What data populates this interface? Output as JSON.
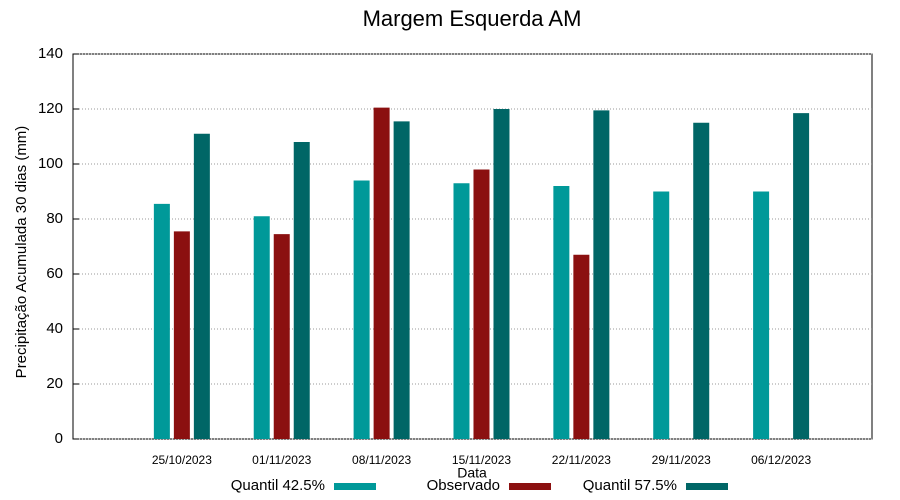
{
  "chart_data": {
    "type": "bar",
    "title": "Margem Esquerda AM",
    "x_label": "Data",
    "y_label": "Precipitação Acumulada 30 dias (mm)",
    "categories": [
      "25/10/2023",
      "01/11/2023",
      "08/11/2023",
      "15/11/2023",
      "22/11/2023",
      "29/11/2023",
      "06/12/2023"
    ],
    "series": [
      {
        "name": "Quantil 42.5%",
        "color": "#009999",
        "values": [
          85.5,
          81,
          94,
          93,
          92,
          90,
          90
        ]
      },
      {
        "name": "Observado",
        "color": "#8b1010",
        "values": [
          75.5,
          74.5,
          120.5,
          98,
          67,
          null,
          null
        ]
      },
      {
        "name": "Quantil 57.5%",
        "color": "#006666",
        "values": [
          111,
          108,
          115.5,
          120,
          119.5,
          115,
          118.5
        ]
      }
    ],
    "ylim": [
      0,
      140
    ],
    "yticks": [
      0,
      20,
      40,
      60,
      80,
      100,
      120,
      140
    ],
    "grid": true,
    "legend": "bottom"
  }
}
